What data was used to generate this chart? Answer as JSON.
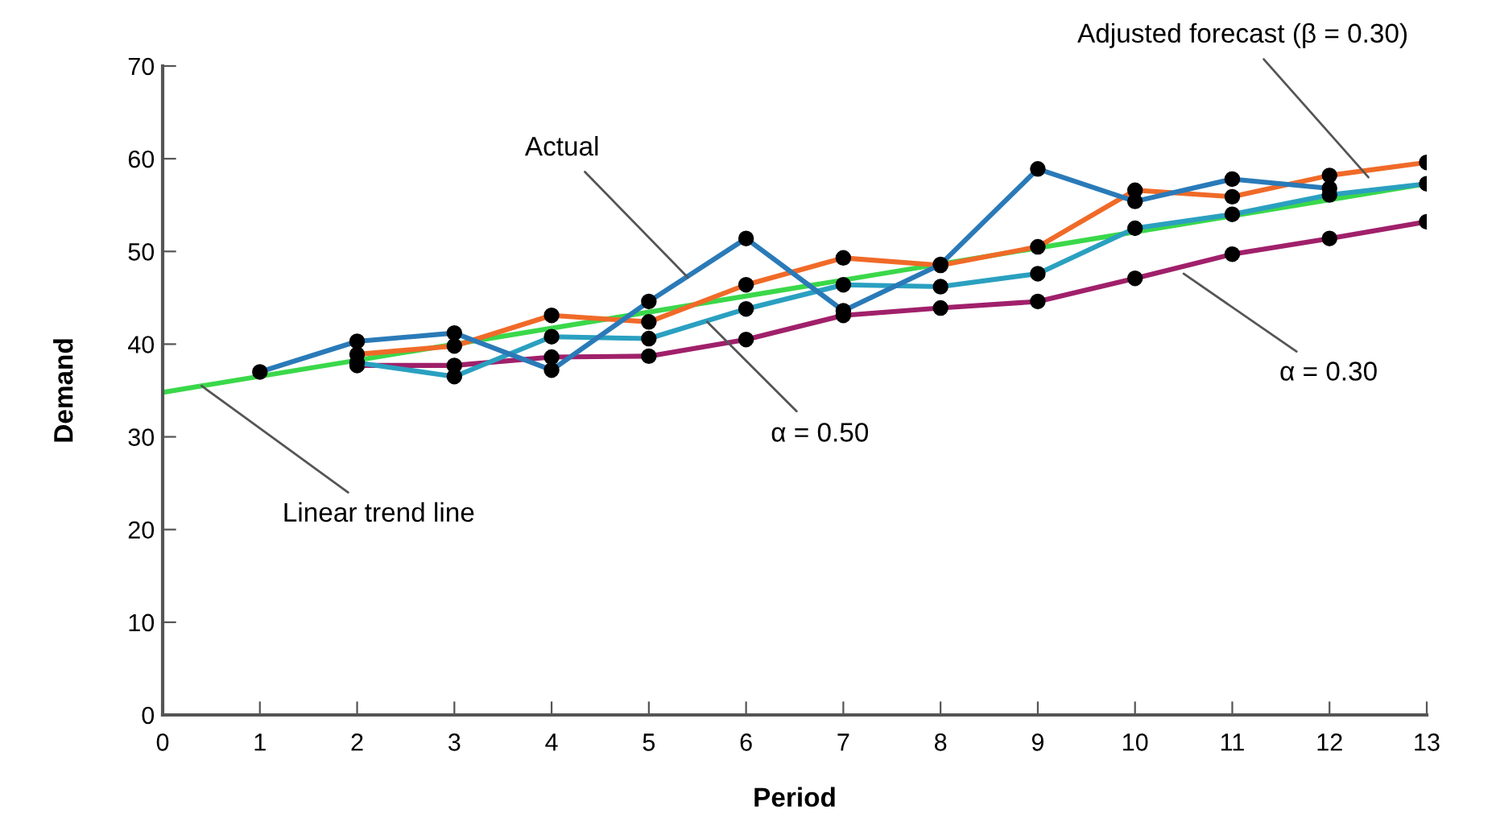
{
  "chart_data": {
    "type": "line",
    "xlabel": "Period",
    "ylabel": "Demand",
    "xlim": [
      0,
      13
    ],
    "xticks": [
      0,
      1,
      2,
      3,
      4,
      5,
      6,
      7,
      8,
      9,
      10,
      11,
      12,
      13
    ],
    "ylim": [
      0,
      70
    ],
    "yticks": [
      0,
      10,
      20,
      30,
      40,
      50,
      60,
      70
    ],
    "grid": false,
    "legend": false,
    "line_style": "solid",
    "series": [
      {
        "color": "#3ad84a",
        "x": [
          0,
          13
        ],
        "values": [
          34.8,
          57.3
        ]
      },
      {
        "color": "#a0206a",
        "marker": "circle",
        "x": [
          2,
          3,
          4,
          5,
          6,
          7,
          8,
          9,
          10,
          11,
          12,
          13
        ],
        "values": [
          37.7,
          37.7,
          38.6,
          38.7,
          40.5,
          43.1,
          43.9,
          44.6,
          47.1,
          49.7,
          51.4,
          53.2
        ]
      },
      {
        "color": "#2aa0c0",
        "marker": "circle",
        "x": [
          2,
          3,
          4,
          5,
          6,
          7,
          8,
          9,
          10,
          11,
          12,
          13
        ],
        "values": [
          38.0,
          36.5,
          40.8,
          40.6,
          43.8,
          46.4,
          46.2,
          47.6,
          52.5,
          54.0,
          56.1,
          57.3
        ]
      },
      {
        "color": "#f06a28",
        "marker": "circle",
        "x": [
          2,
          3,
          4,
          5,
          6,
          7,
          8,
          9,
          10,
          11,
          12,
          13
        ],
        "values": [
          38.9,
          39.8,
          43.1,
          42.4,
          46.4,
          49.3,
          48.5,
          50.5,
          56.6,
          55.9,
          58.2,
          59.6
        ]
      },
      {
        "color": "#2a7ab8",
        "marker": "circle",
        "x": [
          1,
          2,
          3,
          4,
          5,
          6,
          7,
          8,
          9,
          10,
          11,
          12
        ],
        "values": [
          37.0,
          40.3,
          41.2,
          37.2,
          44.6,
          51.4,
          43.6,
          48.6,
          58.9,
          55.4,
          57.8,
          56.8
        ]
      }
    ],
    "annotations": [
      {
        "text": "Actual",
        "x": 5.4,
        "y": 47.2
      },
      {
        "text": "Adjusted forecast (β = 0.30)",
        "x": 12.4,
        "y": 58.0
      },
      {
        "text": "α = 0.50",
        "x": 5.6,
        "y": 42.4
      },
      {
        "text": "α = 0.30",
        "x": 10.5,
        "y": 47.6
      },
      {
        "text": "Linear trend line",
        "x": 0.4,
        "y": 35.5
      }
    ]
  }
}
